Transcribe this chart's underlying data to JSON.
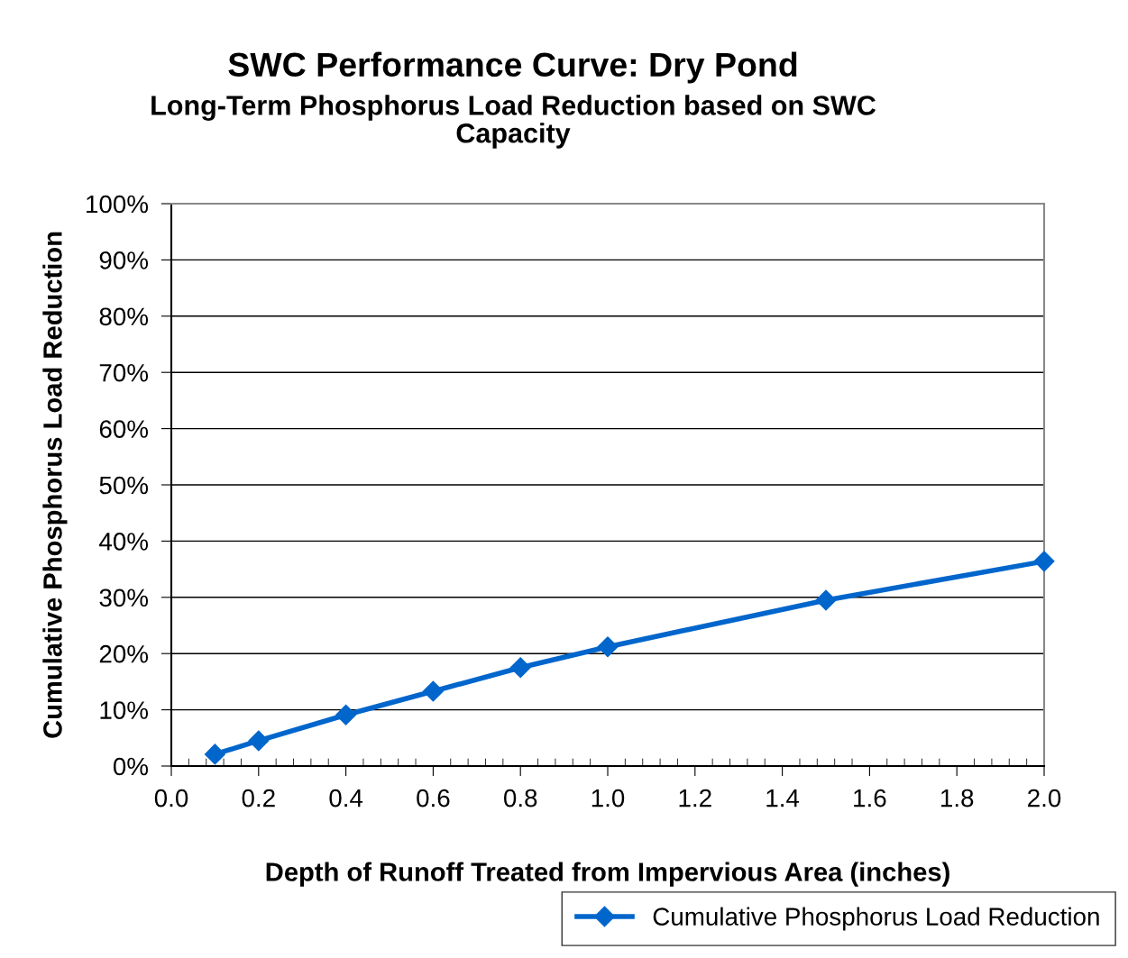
{
  "chart_data": {
    "type": "line",
    "title": "SWC Performance Curve: Dry Pond",
    "subtitle": "Long-Term Phosphorus Load Reduction based on SWC\nCapacity",
    "xlabel": "Depth of Runoff Treated from Impervious Area (inches)",
    "ylabel": "Cumulative Phosphorus Load Reduction",
    "x": [
      0.1,
      0.2,
      0.4,
      0.6,
      0.8,
      1.0,
      1.5,
      2.0
    ],
    "series": [
      {
        "name": "Cumulative Phosphorus Load Reduction",
        "color": "#0066cc",
        "values": [
          2.1,
          4.5,
          9.1,
          13.3,
          17.5,
          21.2,
          29.5,
          36.4
        ]
      }
    ],
    "xlim": [
      0,
      2
    ],
    "xticks": [
      {
        "value": 0,
        "label": "0.0"
      },
      {
        "value": 0.2,
        "label": "0.2"
      },
      {
        "value": 0.4,
        "label": "0.4"
      },
      {
        "value": 0.6,
        "label": "0.6"
      },
      {
        "value": 0.8,
        "label": "0.8"
      },
      {
        "value": 1.0,
        "label": "1.0"
      },
      {
        "value": 1.2,
        "label": "1.2"
      },
      {
        "value": 1.4,
        "label": "1.4"
      },
      {
        "value": 1.6,
        "label": "1.6"
      },
      {
        "value": 1.8,
        "label": "1.8"
      },
      {
        "value": 2.0,
        "label": "2.0"
      }
    ],
    "ylim": [
      0,
      100
    ],
    "yticks": [
      {
        "value": 0,
        "label": "0%"
      },
      {
        "value": 10,
        "label": "10%"
      },
      {
        "value": 20,
        "label": "20%"
      },
      {
        "value": 30,
        "label": "30%"
      },
      {
        "value": 40,
        "label": "40%"
      },
      {
        "value": 50,
        "label": "50%"
      },
      {
        "value": 60,
        "label": "60%"
      },
      {
        "value": 70,
        "label": "70%"
      },
      {
        "value": 80,
        "label": "80%"
      },
      {
        "value": 90,
        "label": "90%"
      },
      {
        "value": 100,
        "label": "100%"
      }
    ],
    "grid": "y",
    "legend": "bottom right",
    "marker": "diamond",
    "line_style": "solid"
  }
}
